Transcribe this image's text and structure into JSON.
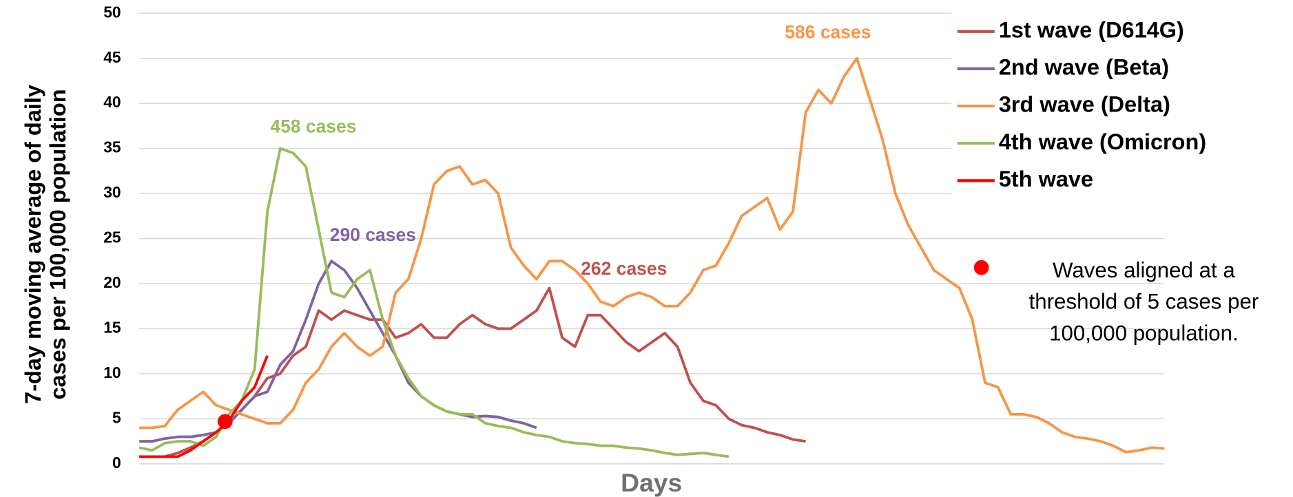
{
  "chart_data": {
    "type": "line",
    "ylabel": [
      "7-day moving  average of daily",
      "cases per 100,000 population"
    ],
    "xlabel": "Days",
    "ylim": [
      0,
      50
    ],
    "yticks": [
      0,
      5,
      10,
      15,
      20,
      25,
      30,
      35,
      40,
      45,
      50
    ],
    "grid": true,
    "series": [
      {
        "name": "1st wave (D614G)",
        "color": "#c0504d",
        "values": [
          0.8,
          0.8,
          0.8,
          1.2,
          1.8,
          2.5,
          3.5,
          4.5,
          6,
          7.5,
          9.5,
          10,
          12,
          13,
          17,
          16,
          17,
          16.5,
          16,
          16,
          14,
          14.5,
          15.5,
          14,
          14,
          15.5,
          16.5,
          15.5,
          15,
          15,
          16,
          17,
          19.5,
          14,
          13,
          16.5,
          16.5,
          15,
          13.5,
          12.5,
          13.5,
          14.5,
          13,
          9,
          7,
          6.5,
          5,
          4.3,
          4,
          3.5,
          3.2,
          2.7,
          2.5
        ]
      },
      {
        "name": "2nd wave (Beta)",
        "color": "#8064a2",
        "values": [
          2.5,
          2.5,
          2.8,
          3,
          3,
          3.2,
          3.5,
          4.5,
          6,
          7.5,
          8,
          11,
          12.5,
          16,
          20,
          22.5,
          21.5,
          19.5,
          17,
          14.5,
          12,
          9,
          7.5,
          6.5,
          5.8,
          5.5,
          5.2,
          5.3,
          5.2,
          4.8,
          4.5,
          4
        ]
      },
      {
        "name": "3rd wave (Delta)",
        "color": "#f79646",
        "values": [
          4,
          4,
          4.2,
          6,
          7,
          8,
          6.5,
          6,
          5.5,
          5,
          4.5,
          4.5,
          6,
          9,
          10.5,
          13,
          14.5,
          13,
          12,
          13,
          19,
          20.5,
          25,
          31,
          32.5,
          33,
          31,
          31.5,
          30,
          24,
          22,
          20.5,
          22.5,
          22.5,
          21.5,
          20,
          18,
          17.5,
          18.5,
          19,
          18.5,
          17.5,
          17.5,
          19,
          21.5,
          22,
          24.5,
          27.5,
          28.5,
          29.5,
          26,
          28,
          39,
          41.5,
          40,
          43,
          45,
          40.5,
          36,
          30,
          26.5,
          24,
          21.5,
          20.5,
          19.5,
          16,
          9,
          8.5,
          5.5,
          5.5,
          5.2,
          4.5,
          3.5,
          3,
          2.8,
          2.5,
          2,
          1.3,
          1.5,
          1.8,
          1.7
        ]
      },
      {
        "name": "4th wave (Omicron)",
        "color": "#9bbb59",
        "values": [
          1.8,
          1.5,
          2.3,
          2.5,
          2.5,
          2,
          3,
          5.5,
          7,
          10.5,
          28,
          35,
          34.5,
          33,
          26,
          19,
          18.5,
          20.5,
          21.5,
          16,
          12,
          9.5,
          7.5,
          6.5,
          5.8,
          5.5,
          5.5,
          4.5,
          4.2,
          4,
          3.5,
          3.2,
          3,
          2.5,
          2.3,
          2.2,
          2,
          2,
          1.8,
          1.7,
          1.5,
          1.2,
          1,
          1.1,
          1.2,
          1,
          0.8
        ]
      },
      {
        "name": "5th wave",
        "color": "#ff0000",
        "values": [
          0.8,
          0.8,
          0.8,
          0.8,
          1.5,
          2.5,
          3.5,
          4.8,
          7,
          8.5,
          12
        ]
      }
    ],
    "annotations": [
      {
        "text": "586 cases",
        "series": 2
      },
      {
        "text": "458 cases",
        "series": 3
      },
      {
        "text": "290 cases",
        "series": 1
      },
      {
        "text": "262 cases",
        "series": 0
      }
    ],
    "marker": {
      "x": 6.7,
      "y": 4.7,
      "color": "#ff0000"
    },
    "note": [
      "Waves aligned at a",
      "threshold of 5 cases per",
      "100,000 population."
    ]
  }
}
